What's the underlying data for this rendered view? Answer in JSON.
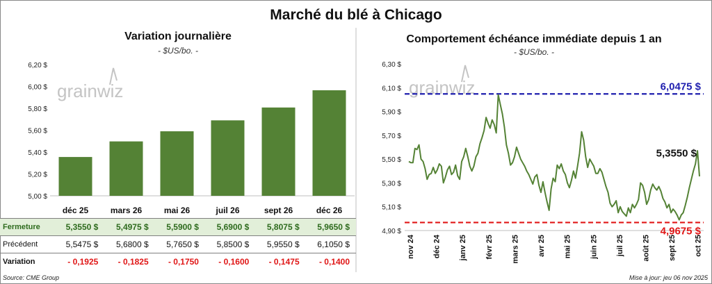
{
  "title": "Marché du blé à Chicago",
  "left": {
    "title": "Variation journalière",
    "subtitle": "- $US/bo. -",
    "watermark": "grainwiz",
    "rows": {
      "close_label": "Fermeture",
      "prev_label": "Précédent",
      "var_label": "Variation",
      "close": [
        "5,3550 $",
        "5,4975 $",
        "5,5900 $",
        "5,6900 $",
        "5,8075 $",
        "5,9650 $"
      ],
      "prev": [
        "5,5475 $",
        "5,6800 $",
        "5,7650 $",
        "5,8500 $",
        "5,9550 $",
        "6,1050 $"
      ],
      "var": [
        "- 0,1925",
        "- 0,1825",
        "- 0,1750",
        "- 0,1600",
        "- 0,1475",
        "- 0,1400"
      ]
    }
  },
  "right": {
    "title": "Comportement échéance immédiate depuis 1 an",
    "subtitle": "- $US/bo. -",
    "watermark": "grainwiz"
  },
  "footer": {
    "source": "Source: CME Group",
    "updated": "Mise à jour: jeu 06 nov 2025"
  },
  "chart_data": [
    {
      "type": "bar",
      "categories": [
        "déc 25",
        "mars 26",
        "mai 26",
        "juil 26",
        "sept 26",
        "déc 26"
      ],
      "values": [
        5.355,
        5.4975,
        5.59,
        5.69,
        5.8075,
        5.965
      ],
      "ylim": [
        5.0,
        6.2
      ],
      "yticks": [
        "5,00 $",
        "5,20 $",
        "5,40 $",
        "5,60 $",
        "5,80 $",
        "6,00 $",
        "6,20 $"
      ],
      "color": "#548235",
      "grid": false
    },
    {
      "type": "line",
      "x_labels": [
        "nov 24",
        "déc 24",
        "janv 25",
        "févr 25",
        "mars 25",
        "avr 25",
        "mai 25",
        "juin 25",
        "juil 25",
        "août 25",
        "sept 25",
        "oct 25"
      ],
      "ylim": [
        4.9,
        6.3
      ],
      "yticks": [
        "4,90 $",
        "5,10 $",
        "5,30 $",
        "5,50 $",
        "5,70 $",
        "5,90 $",
        "6,10 $",
        "6,30 $"
      ],
      "color": "#548235",
      "grid": false,
      "series": [
        {
          "values": [
            5.48,
            5.47,
            5.47,
            5.59,
            5.58,
            5.62,
            5.5,
            5.48,
            5.42,
            5.33,
            5.37,
            5.38,
            5.43,
            5.38,
            5.41,
            5.46,
            5.44,
            5.3,
            5.35,
            5.41,
            5.44,
            5.37,
            5.39,
            5.45,
            5.36,
            5.33,
            5.48,
            5.52,
            5.59,
            5.52,
            5.44,
            5.4,
            5.44,
            5.52,
            5.55,
            5.63,
            5.68,
            5.74,
            5.85,
            5.8,
            5.76,
            5.83,
            5.79,
            5.72,
            6.04,
            5.96,
            5.88,
            5.77,
            5.62,
            5.55,
            5.45,
            5.47,
            5.52,
            5.6,
            5.55,
            5.5,
            5.47,
            5.44,
            5.4,
            5.37,
            5.33,
            5.29,
            5.35,
            5.37,
            5.28,
            5.22,
            5.31,
            5.22,
            5.14,
            5.07,
            5.25,
            5.34,
            5.31,
            5.45,
            5.42,
            5.46,
            5.4,
            5.37,
            5.3,
            5.26,
            5.32,
            5.4,
            5.34,
            5.44,
            5.55,
            5.73,
            5.66,
            5.52,
            5.43,
            5.5,
            5.47,
            5.44,
            5.38,
            5.38,
            5.42,
            5.39,
            5.33,
            5.27,
            5.22,
            5.13,
            5.1,
            5.12,
            5.15,
            5.05,
            5.1,
            5.06,
            5.04,
            5.02,
            5.09,
            5.05,
            5.12,
            5.09,
            5.12,
            5.16,
            5.3,
            5.28,
            5.22,
            5.12,
            5.16,
            5.24,
            5.29,
            5.26,
            5.24,
            5.27,
            5.23,
            5.17,
            5.14,
            5.09,
            5.12,
            5.05,
            5.08,
            5.06,
            5.03,
            4.99,
            5.03,
            5.05,
            5.11,
            5.18,
            5.26,
            5.33,
            5.4,
            5.46,
            5.57,
            5.355
          ]
        }
      ],
      "reference_lines": [
        {
          "value": 6.0475,
          "label": "6,0475 $",
          "color": "#1f1faf"
        },
        {
          "value": 4.9675,
          "label": "4,9675 $",
          "color": "#e01616"
        }
      ],
      "last_value_label": "5,3550 $"
    }
  ]
}
